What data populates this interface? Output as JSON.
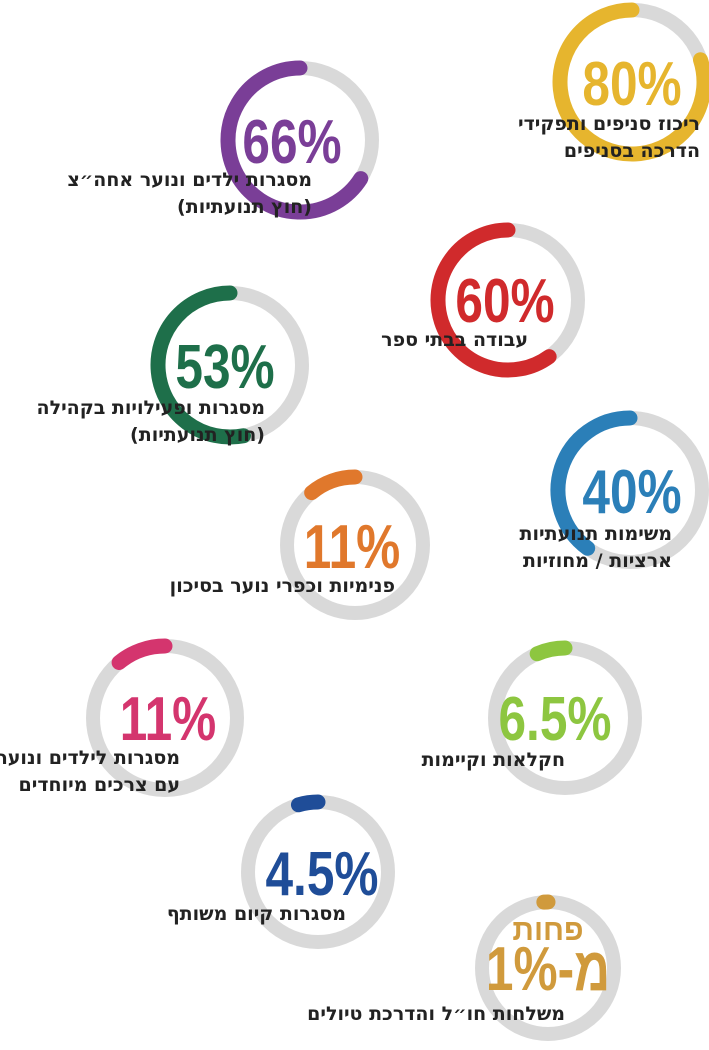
{
  "chart_data": {
    "type": "ring",
    "categories": [
      [
        "ריכוז סניפים ותפקידי",
        "הדרכה בסניפים"
      ],
      [
        "מסגרות ילדים ונוער אחה״צ",
        "(חוץ תנועתיות)"
      ],
      [
        "עבודה בבתי ספר"
      ],
      [
        "מסגרות ופעילויות בקהילה",
        "(חוץ תנועתיות)"
      ],
      [
        "משימות תנועתיות",
        "ארציות / מחוזיות"
      ],
      [
        "פנימיות וכפרי נוער בסיכון"
      ],
      [
        "מסגרות לילדים ונוער",
        "עם צרכים מיוחדים"
      ],
      [
        "חקלאות וקיימות"
      ],
      [
        "מסגרות קיום משותף"
      ],
      [
        "משלחות חו״ל והדרכת טיולים"
      ]
    ],
    "values": [
      80,
      66,
      60,
      53,
      40,
      11,
      11,
      6.5,
      4.5,
      1
    ],
    "value_labels": [
      "80%",
      "66%",
      "60%",
      "53%",
      "40%",
      "11%",
      "11%",
      "6.5%",
      "4.5%",
      "פחות מ-1%"
    ],
    "colors": [
      "#e6b52e",
      "#7a3e97",
      "#d02a2c",
      "#1e6f4a",
      "#2b7fb8",
      "#e0782c",
      "#d4356e",
      "#8dc640",
      "#1f4d98",
      "#d09a3c"
    ]
  }
}
